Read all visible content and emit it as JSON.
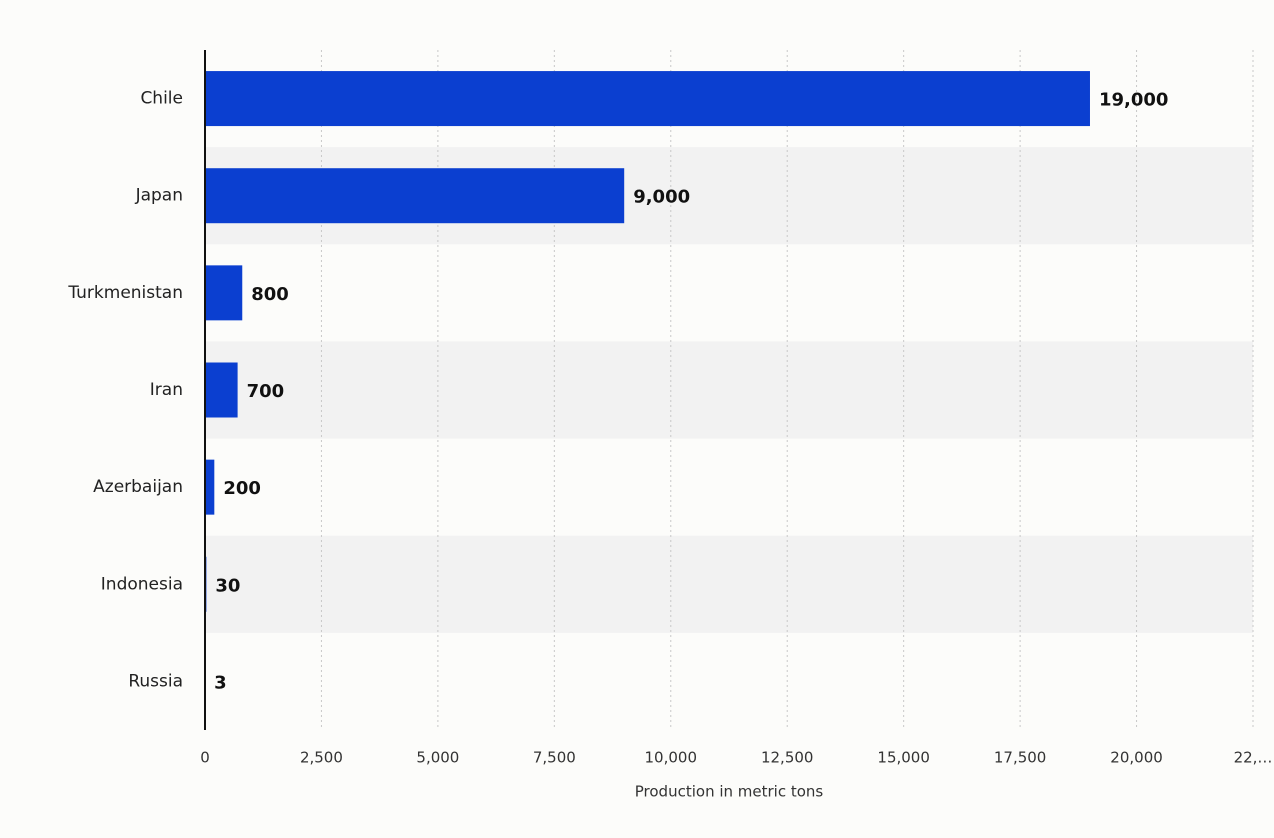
{
  "chart_data": {
    "type": "bar",
    "orientation": "horizontal",
    "x_label": "Production in metric tons",
    "categories": [
      "Chile",
      "Japan",
      "Turkmenistan",
      "Iran",
      "Azerbaijan",
      "Indonesia",
      "Russia"
    ],
    "values": [
      19000,
      9000,
      800,
      700,
      200,
      30,
      3
    ],
    "value_labels": [
      "19,000",
      "9,000",
      "800",
      "700",
      "200",
      "30",
      "3"
    ],
    "color": "#0b3fd0",
    "xlim": [
      0,
      22500
    ],
    "xticks": [
      0,
      {
        "value": 2500,
        "label": "2,500"
      },
      {
        "value": 5000,
        "label": "5,000"
      },
      {
        "value": 7500,
        "label": "7,500"
      },
      {
        "value": 10000,
        "label": "10,000"
      },
      {
        "value": 12500,
        "label": "12,500"
      },
      {
        "value": 15000,
        "label": "15,000"
      },
      {
        "value": 17500,
        "label": "17,500"
      },
      {
        "value": 20000,
        "label": "20,000"
      },
      {
        "value": 22500,
        "label": "22,…"
      }
    ],
    "grid": true
  }
}
